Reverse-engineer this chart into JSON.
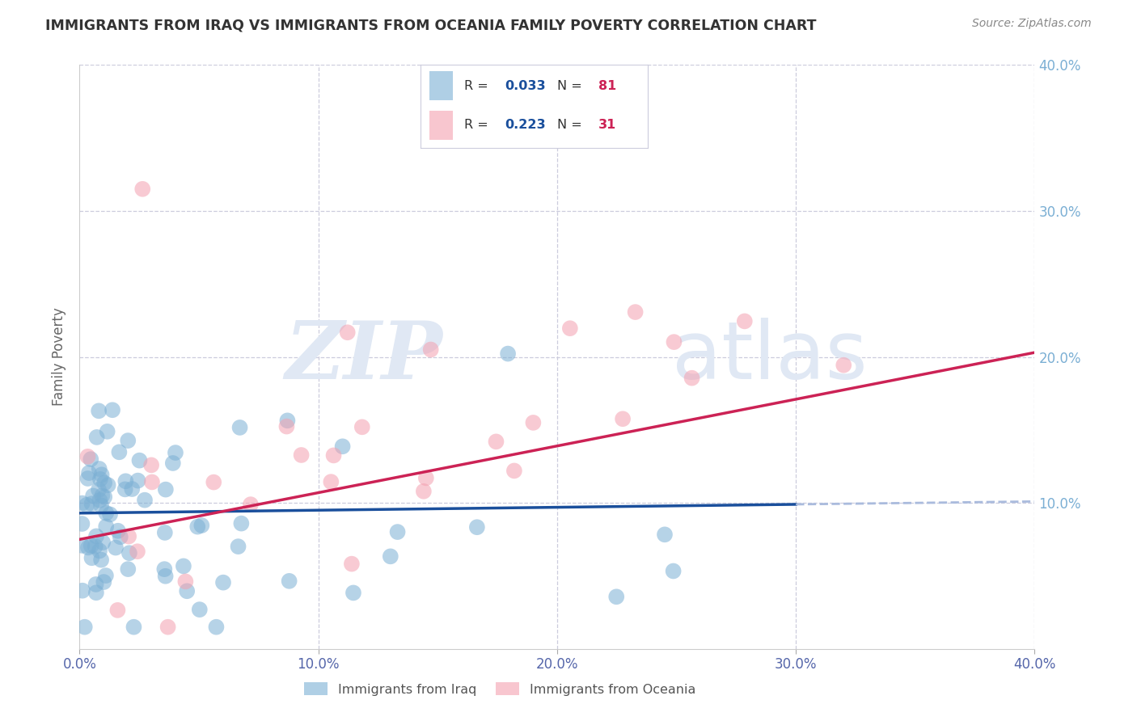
{
  "title": "IMMIGRANTS FROM IRAQ VS IMMIGRANTS FROM OCEANIA FAMILY POVERTY CORRELATION CHART",
  "source": "Source: ZipAtlas.com",
  "ylabel": "Family Poverty",
  "xlim": [
    0.0,
    0.4
  ],
  "ylim": [
    0.0,
    0.4
  ],
  "xticks": [
    0.0,
    0.1,
    0.2,
    0.3,
    0.4
  ],
  "yticks": [
    0.0,
    0.1,
    0.2,
    0.3,
    0.4
  ],
  "xtick_labels": [
    "0.0%",
    "10.0%",
    "20.0%",
    "30.0%",
    "40.0%"
  ],
  "ytick_labels": [
    "",
    "10.0%",
    "20.0%",
    "30.0%",
    "40.0%"
  ],
  "iraq_color": "#7BAFD4",
  "oceania_color": "#F4A0B0",
  "iraq_line_color": "#1A4F9C",
  "oceania_line_color": "#CC2255",
  "dashed_line_color": "#AABBDD",
  "iraq_R": 0.033,
  "iraq_N": 81,
  "oceania_R": 0.223,
  "oceania_N": 31,
  "legend_R_color": "#1A4F9C",
  "legend_N_color": "#CC2255",
  "background_color": "#FFFFFF",
  "grid_color": "#CCCCDD",
  "title_color": "#333333",
  "axis_label_color": "#666666",
  "right_tick_color": "#7BAFD4",
  "x_tick_color": "#5566AA",
  "watermark_zip": "ZIP",
  "watermark_atlas": "atlas",
  "watermark_color": "#E0E8F4"
}
